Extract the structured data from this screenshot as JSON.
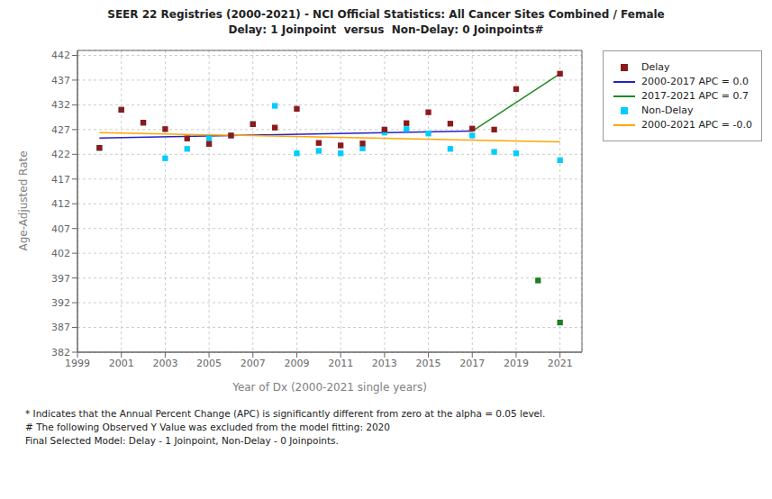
{
  "chart_data": {
    "type": "scatter",
    "title": "SEER 22 Registries (2000-2021) - NCI Official Statistics: All Cancer Sites Combined / Female",
    "subtitle": "Delay: 1 Joinpoint  versus  Non-Delay: 0 Joinpoints#",
    "xlabel": "Year of Dx (2000-2021 single years)",
    "ylabel": "Age-Adjusted Rate",
    "xlim": [
      1999,
      2022
    ],
    "ylim": [
      382,
      443
    ],
    "xticks": [
      1999,
      2001,
      2003,
      2005,
      2007,
      2009,
      2011,
      2013,
      2015,
      2017,
      2019,
      2021
    ],
    "yticks": [
      382,
      387,
      392,
      397,
      402,
      407,
      412,
      417,
      422,
      427,
      432,
      437,
      442
    ],
    "grid": true,
    "legend": "upper right",
    "annotations": [
      "* Indicates that the Annual Percent Change (APC) is significantly different from zero at the alpha = 0.05 level.",
      " # The following Observed Y Value was excluded from the model fitting: 2020",
      "Final Selected Model: Delay - 1 Joinpoint, Non-Delay - 0 Joinpoints."
    ],
    "series": [
      {
        "name": "Delay",
        "type": "scatter",
        "marker": "square",
        "color": "#8B1A1A",
        "x": [
          2000,
          2001,
          2002,
          2003,
          2004,
          2005,
          2006,
          2007,
          2008,
          2009,
          2010,
          2011,
          2012,
          2013,
          2014,
          2015,
          2016,
          2017,
          2018,
          2019,
          2021
        ],
        "values": [
          423.3,
          431.0,
          428.4,
          427.1,
          425.2,
          424.1,
          425.8,
          428.1,
          427.4,
          431.2,
          424.3,
          423.8,
          424.2,
          427.0,
          428.3,
          430.5,
          428.2,
          427.2,
          427.0,
          435.2,
          438.3
        ]
      },
      {
        "name": "2000-2017 APC = 0.0",
        "type": "line",
        "color": "#2222CC",
        "x": [
          2000,
          2017
        ],
        "values": [
          425.3,
          426.7
        ]
      },
      {
        "name": "2017-2021 APC = 0.7",
        "type": "line",
        "color": "#228B22",
        "x": [
          2017,
          2021
        ],
        "values": [
          426.7,
          438.3
        ]
      },
      {
        "name": "Non-Delay",
        "type": "scatter",
        "marker": "square",
        "color": "#00CCFF",
        "x": [
          2000,
          2001,
          2002,
          2003,
          2004,
          2005,
          2006,
          2007,
          2008,
          2009,
          2010,
          2011,
          2012,
          2013,
          2014,
          2015,
          2016,
          2017,
          2018,
          2019,
          2021
        ],
        "values": [
          423.3,
          431.0,
          428.4,
          421.2,
          423.1,
          425.2,
          425.8,
          428.1,
          431.8,
          422.2,
          422.7,
          422.2,
          423.2,
          426.4,
          427.1,
          426.2,
          423.1,
          425.8,
          422.5,
          422.2,
          420.8
        ]
      },
      {
        "name": "2000-2021 APC = -0.0",
        "type": "line",
        "color": "#FFA500",
        "x": [
          2000,
          2021
        ],
        "values": [
          426.4,
          424.5
        ]
      },
      {
        "type": "scatter",
        "marker": "square",
        "color": "#1E7D1E",
        "x": [
          2020,
          2021
        ],
        "values": [
          396.5,
          388.0
        ]
      }
    ]
  }
}
